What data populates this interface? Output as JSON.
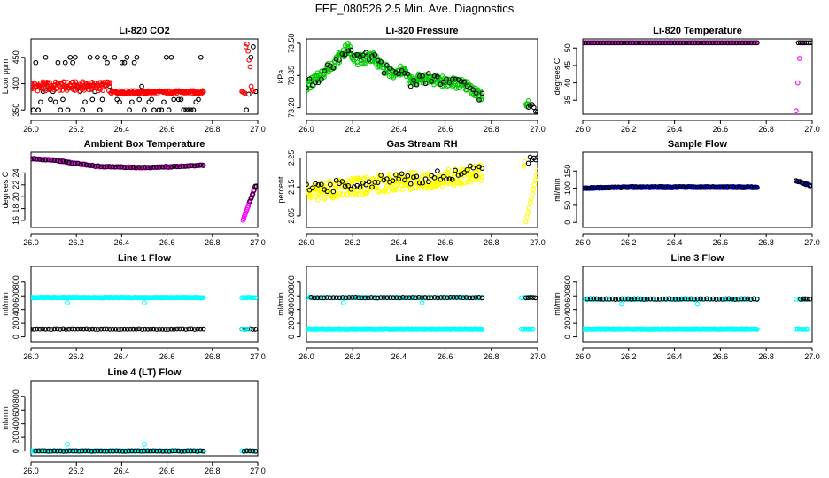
{
  "title": "FEF_080526  2.5 Min. Ave. Diagnostics",
  "colors": {
    "black": "#000000",
    "red": "#ff0000",
    "green": "#00cc00",
    "magenta": "#ff00ff",
    "yellow": "#ffff00",
    "blue": "#0000ff",
    "cyan": "#00ffff"
  },
  "chart_data": [
    {
      "type": "scatter",
      "title": "Li-820 CO2",
      "ylabel": "Licor ppm",
      "xlim": [
        26.0,
        27.0
      ],
      "ylim": [
        342,
        485
      ],
      "xticks": [
        26.0,
        26.2,
        26.4,
        26.6,
        26.8,
        27.0
      ],
      "yticks": [
        350,
        400,
        450
      ],
      "series": [
        {
          "name": "CO2 (black)",
          "color": "black",
          "pattern": "co2_black",
          "segments": [
            {
              "x0": 26.01,
              "x1": 26.76,
              "n": 70
            },
            {
              "x0": 26.95,
              "x1": 26.99,
              "n": 5
            }
          ]
        },
        {
          "name": "CO2 (red)",
          "color": "red",
          "pattern": "co2_red",
          "segments": [
            {
              "x0": 26.0,
              "x1": 26.76,
              "n": 260
            },
            {
              "x0": 26.93,
              "x1": 26.98,
              "n": 12
            }
          ]
        }
      ]
    },
    {
      "type": "scatter",
      "title": "Li-820 Pressure",
      "ylabel": "kPa",
      "xlim": [
        26.0,
        27.0
      ],
      "ylim": [
        73.17,
        73.52
      ],
      "xticks": [
        26.0,
        26.2,
        26.4,
        26.6,
        26.8,
        27.0
      ],
      "yticks": [
        73.2,
        73.35,
        73.5
      ],
      "series": [
        {
          "name": "Pressure (green)",
          "color": "green",
          "pattern": "pressure",
          "segments": [
            {
              "x0": 26.0,
              "x1": 26.76,
              "n": 300
            },
            {
              "x0": 26.95,
              "x1": 26.96,
              "n": 6
            }
          ]
        },
        {
          "name": "Pressure (black)",
          "color": "black",
          "pattern": "pressure",
          "segments": [
            {
              "x0": 26.0,
              "x1": 26.76,
              "n": 60
            },
            {
              "x0": 26.96,
              "x1": 27.0,
              "n": 6
            }
          ]
        }
      ]
    },
    {
      "type": "scatter",
      "title": "Li-820 Temperature",
      "ylabel": "degrees C",
      "xlim": [
        26.0,
        27.0
      ],
      "ylim": [
        31,
        52.6
      ],
      "xticks": [
        26.0,
        26.2,
        26.4,
        26.6,
        26.8,
        27.0
      ],
      "yticks": [
        35,
        40,
        45,
        50
      ],
      "series": [
        {
          "name": "Temperature (magenta)",
          "color": "magenta",
          "pattern": "licor_temp_mag",
          "segments": [
            {
              "x0": 26.0,
              "x1": 26.76,
              "n": 150
            },
            {
              "x0": 26.93,
              "x1": 26.96,
              "n": 5
            }
          ]
        },
        {
          "name": "Temperature (black)",
          "color": "black",
          "pattern": "licor_temp_blk",
          "segments": [
            {
              "x0": 26.0,
              "x1": 26.76,
              "n": 60
            },
            {
              "x0": 26.94,
              "x1": 27.0,
              "n": 8
            }
          ]
        }
      ]
    },
    {
      "type": "scatter",
      "title": "Ambient Box Temperature",
      "ylabel": "degrees C",
      "xlim": [
        26.0,
        27.0
      ],
      "ylim": [
        14.8,
        27.5
      ],
      "xticks": [
        26.0,
        26.2,
        26.4,
        26.6,
        26.8,
        27.0
      ],
      "yticks": [
        16,
        18,
        20,
        22,
        24
      ],
      "series": [
        {
          "name": "Ambient (magenta)",
          "color": "magenta",
          "pattern": "ambient",
          "segments": [
            {
              "x0": 26.0,
              "x1": 26.76,
              "n": 200
            },
            {
              "x0": 26.935,
              "x1": 26.99,
              "n": 20
            }
          ]
        },
        {
          "name": "Ambient (black)",
          "color": "black",
          "pattern": "ambient",
          "segments": [
            {
              "x0": 26.0,
              "x1": 26.76,
              "n": 60
            },
            {
              "x0": 26.965,
              "x1": 26.995,
              "n": 6
            }
          ]
        }
      ]
    },
    {
      "type": "scatter",
      "title": "Gas Stream RH",
      "ylabel": "percent",
      "xlim": [
        26.0,
        27.0
      ],
      "ylim": [
        2.01,
        2.27
      ],
      "xticks": [
        26.0,
        26.2,
        26.4,
        26.6,
        26.8,
        27.0
      ],
      "yticks": [
        2.05,
        2.15,
        2.25
      ],
      "series": [
        {
          "name": "RH (yellow)",
          "color": "yellow",
          "pattern": "rh_yellow",
          "segments": [
            {
              "x0": 26.0,
              "x1": 26.76,
              "n": 320
            },
            {
              "x0": 26.94,
              "x1": 27.0,
              "n": 14
            }
          ]
        },
        {
          "name": "RH (black)",
          "color": "black",
          "pattern": "rh_black",
          "segments": [
            {
              "x0": 26.0,
              "x1": 26.76,
              "n": 60
            },
            {
              "x0": 26.96,
              "x1": 27.0,
              "n": 6
            }
          ]
        }
      ]
    },
    {
      "type": "scatter",
      "title": "Sample Flow",
      "ylabel": "ml/min",
      "xlim": [
        26.0,
        27.0
      ],
      "ylim": [
        -15,
        205
      ],
      "xticks": [
        26.0,
        26.2,
        26.4,
        26.6,
        26.8,
        27.0
      ],
      "yticks": [
        0,
        50,
        100,
        150
      ],
      "series": [
        {
          "name": "Sample (blue)",
          "color": "blue",
          "pattern": "sample_flow",
          "segments": [
            {
              "x0": 26.0,
              "x1": 26.76,
              "n": 250
            },
            {
              "x0": 26.93,
              "x1": 26.99,
              "n": 10
            }
          ]
        },
        {
          "name": "Sample (black)",
          "color": "black",
          "pattern": "sample_flow",
          "segments": [
            {
              "x0": 26.0,
              "x1": 26.76,
              "n": 60
            },
            {
              "x0": 26.93,
              "x1": 26.99,
              "n": 8
            }
          ]
        }
      ]
    },
    {
      "type": "scatter",
      "title": "Line 1 Flow",
      "ylabel": "ml/min",
      "xlim": [
        26.0,
        27.0
      ],
      "ylim": [
        -70,
        1030
      ],
      "xticks": [
        26.0,
        26.2,
        26.4,
        26.6,
        26.8,
        27.0
      ],
      "yticks": [
        0,
        200,
        400,
        600,
        800
      ],
      "series": [
        {
          "name": "Line 1 (cyan)",
          "color": "cyan",
          "level": 575,
          "outliers": [
            [
              26.16,
              500
            ],
            [
              26.5,
              500
            ]
          ],
          "segments": [
            {
              "x0": 26.0,
              "x1": 26.76,
              "n": 200
            },
            {
              "x0": 26.93,
              "x1": 26.99,
              "n": 10
            }
          ]
        },
        {
          "name": "Line 1 (black)",
          "color": "black",
          "level": 115,
          "outliers": [],
          "segments": [
            {
              "x0": 26.0,
              "x1": 26.76,
              "n": 60
            },
            {
              "x0": 26.93,
              "x1": 26.99,
              "n": 6
            }
          ]
        },
        {
          "name": "Line 1 (cyan low)",
          "color": "cyan",
          "level": 115,
          "outliers": [],
          "segments": [
            {
              "x0": 26.93,
              "x1": 26.96,
              "n": 4
            }
          ]
        }
      ]
    },
    {
      "type": "scatter",
      "title": "Line 2 Flow",
      "ylabel": "ml/min",
      "xlim": [
        26.0,
        27.0
      ],
      "ylim": [
        -70,
        1030
      ],
      "xticks": [
        26.0,
        26.2,
        26.4,
        26.6,
        26.8,
        27.0
      ],
      "yticks": [
        0,
        200,
        400,
        600,
        800
      ],
      "series": [
        {
          "name": "Line 2 (cyan low)",
          "color": "cyan",
          "level": 115,
          "outliers": [],
          "segments": [
            {
              "x0": 26.0,
              "x1": 26.76,
              "n": 200
            },
            {
              "x0": 26.93,
              "x1": 26.98,
              "n": 8
            }
          ]
        },
        {
          "name": "Line 2 (cyan high)",
          "color": "cyan",
          "level": 575,
          "outliers": [
            [
              26.16,
              500
            ],
            [
              26.5,
              500
            ]
          ],
          "segments": [
            {
              "x0": 26.0,
              "x1": 26.76,
              "n": 60
            },
            {
              "x0": 26.93,
              "x1": 26.97,
              "n": 4
            }
          ]
        },
        {
          "name": "Line 2 (black)",
          "color": "black",
          "level": 575,
          "outliers": [],
          "segments": [
            {
              "x0": 26.02,
              "x1": 26.76,
              "n": 55
            },
            {
              "x0": 26.95,
              "x1": 26.99,
              "n": 5
            }
          ]
        }
      ]
    },
    {
      "type": "scatter",
      "title": "Line 3 Flow",
      "ylabel": "ml/min",
      "xlim": [
        26.0,
        27.0
      ],
      "ylim": [
        -70,
        1030
      ],
      "xticks": [
        26.0,
        26.2,
        26.4,
        26.6,
        26.8,
        27.0
      ],
      "yticks": [
        0,
        200,
        400,
        600,
        800
      ],
      "series": [
        {
          "name": "Line 3 (cyan low)",
          "color": "cyan",
          "level": 115,
          "outliers": [],
          "segments": [
            {
              "x0": 26.0,
              "x1": 26.76,
              "n": 200
            },
            {
              "x0": 26.93,
              "x1": 26.98,
              "n": 8
            }
          ]
        },
        {
          "name": "Line 3 (cyan high)",
          "color": "cyan",
          "level": 550,
          "outliers": [
            [
              26.17,
              480
            ],
            [
              26.5,
              480
            ]
          ],
          "segments": [
            {
              "x0": 26.0,
              "x1": 26.76,
              "n": 60
            },
            {
              "x0": 26.93,
              "x1": 26.97,
              "n": 4
            }
          ]
        },
        {
          "name": "Line 3 (black)",
          "color": "black",
          "level": 555,
          "outliers": [],
          "segments": [
            {
              "x0": 26.02,
              "x1": 26.76,
              "n": 55
            },
            {
              "x0": 26.95,
              "x1": 26.99,
              "n": 5
            }
          ]
        }
      ]
    },
    {
      "type": "scatter",
      "title": "Line 4 (LT) Flow",
      "ylabel": "ml/min",
      "xlim": [
        26.0,
        27.0
      ],
      "ylim": [
        -70,
        1030
      ],
      "xticks": [
        26.0,
        26.2,
        26.4,
        26.6,
        26.8,
        27.0
      ],
      "yticks": [
        0,
        200,
        400,
        600,
        800
      ],
      "series": [
        {
          "name": "Line 4 (cyan)",
          "color": "cyan",
          "level": 0,
          "outliers": [
            [
              26.16,
              100
            ],
            [
              26.5,
              100
            ]
          ],
          "segments": [
            {
              "x0": 26.0,
              "x1": 26.76,
              "n": 200
            },
            {
              "x0": 26.93,
              "x1": 26.99,
              "n": 8
            }
          ]
        },
        {
          "name": "Line 4 (black)",
          "color": "black",
          "level": 0,
          "outliers": [],
          "segments": [
            {
              "x0": 26.02,
              "x1": 26.76,
              "n": 55
            },
            {
              "x0": 26.94,
              "x1": 26.99,
              "n": 5
            }
          ]
        }
      ]
    }
  ]
}
